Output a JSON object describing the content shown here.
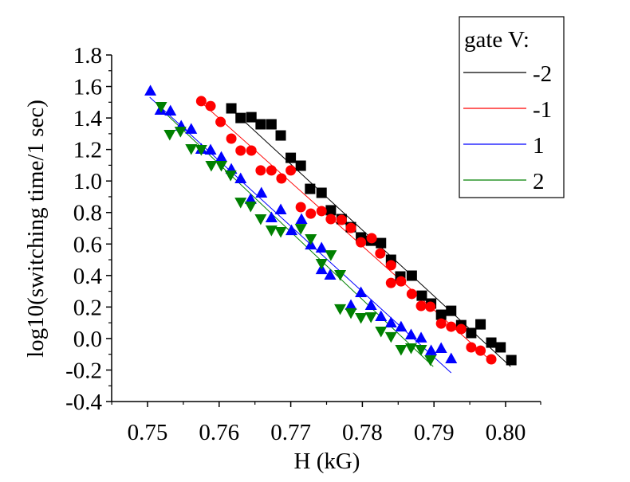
{
  "chart_data": {
    "type": "scatter",
    "title": "",
    "xlabel": "H (kG)",
    "ylabel": "log10(switching time/1 sec)",
    "xlim": [
      0.745,
      0.805
    ],
    "ylim": [
      -0.4,
      1.8
    ],
    "xticks": [
      0.75,
      0.76,
      0.77,
      0.78,
      0.79,
      0.8
    ],
    "xtick_labels": [
      "0.75",
      "0.76",
      "0.77",
      "0.78",
      "0.79",
      "0.80"
    ],
    "yticks": [
      -0.4,
      -0.2,
      0.0,
      0.2,
      0.4,
      0.6,
      0.8,
      1.0,
      1.2,
      1.4,
      1.6,
      1.8
    ],
    "ytick_labels": [
      "-0.4",
      "-0.2",
      "0.0",
      "0.2",
      "0.4",
      "0.6",
      "0.8",
      "1.0",
      "1.2",
      "1.4",
      "1.6",
      "1.8"
    ],
    "grid": false,
    "legend": {
      "title": "gate V:",
      "position": "top-right",
      "entries": [
        "-2",
        "-1",
        "1",
        "2"
      ]
    },
    "series": [
      {
        "name": "-2",
        "color": "#000000",
        "marker": "square",
        "x": [
          0.7617,
          0.763,
          0.7645,
          0.7658,
          0.7673,
          0.7686,
          0.77,
          0.7714,
          0.7727,
          0.7743,
          0.7756,
          0.7771,
          0.7784,
          0.7798,
          0.7812,
          0.7826,
          0.784,
          0.7853,
          0.7869,
          0.7883,
          0.7896,
          0.791,
          0.7924,
          0.7938,
          0.7952,
          0.7965,
          0.798,
          0.7993,
          0.8008
        ],
        "y": [
          1.461,
          1.4,
          1.405,
          1.36,
          1.36,
          1.289,
          1.147,
          1.097,
          0.95,
          0.925,
          0.814,
          0.758,
          0.707,
          0.642,
          0.621,
          0.606,
          0.5,
          0.394,
          0.399,
          0.272,
          0.222,
          0.151,
          0.176,
          0.085,
          0.035,
          0.09,
          -0.026,
          -0.056,
          -0.137
        ],
        "fit": {
          "x": [
            0.7619,
            0.8007
          ],
          "y": [
            1.446,
            -0.178
          ]
        }
      },
      {
        "name": "-1",
        "color": "#ff0000",
        "marker": "circle",
        "x": [
          0.7575,
          0.7588,
          0.7602,
          0.7617,
          0.763,
          0.7645,
          0.7658,
          0.7673,
          0.7687,
          0.77,
          0.7714,
          0.7728,
          0.7743,
          0.7756,
          0.7771,
          0.7784,
          0.7798,
          0.7813,
          0.7825,
          0.784,
          0.784,
          0.7854,
          0.7869,
          0.7882,
          0.7895,
          0.791,
          0.7924,
          0.7938,
          0.7952,
          0.7965,
          0.798
        ],
        "y": [
          1.507,
          1.476,
          1.375,
          1.269,
          1.193,
          1.193,
          1.067,
          1.067,
          1.016,
          1.067,
          0.834,
          0.793,
          0.809,
          0.758,
          0.753,
          0.702,
          0.611,
          0.637,
          0.54,
          0.465,
          0.353,
          0.363,
          0.283,
          0.207,
          0.202,
          0.095,
          0.075,
          0.06,
          -0.056,
          -0.077,
          -0.132
        ],
        "fit": {
          "x": [
            0.7577,
            0.7981
          ],
          "y": [
            1.491,
            -0.147
          ]
        }
      },
      {
        "name": "1",
        "color": "#0000ff",
        "marker": "triangle-up",
        "x": [
          0.7504,
          0.7518,
          0.7532,
          0.7547,
          0.7561,
          0.7575,
          0.7588,
          0.7603,
          0.7617,
          0.763,
          0.7644,
          0.7659,
          0.7673,
          0.7686,
          0.7701,
          0.7715,
          0.7728,
          0.7743,
          0.7743,
          0.7755,
          0.7784,
          0.7798,
          0.7812,
          0.7826,
          0.784,
          0.7854,
          0.7868,
          0.7882,
          0.7896,
          0.791,
          0.7924
        ],
        "y": [
          1.573,
          1.451,
          1.446,
          1.35,
          1.33,
          1.203,
          1.198,
          1.152,
          1.076,
          1.016,
          0.885,
          0.925,
          0.768,
          0.819,
          0.687,
          0.758,
          0.596,
          0.576,
          0.439,
          0.404,
          0.212,
          0.293,
          0.212,
          0.141,
          0.101,
          0.075,
          0.025,
          0.005,
          -0.076,
          -0.061,
          -0.127
        ],
        "fit": {
          "x": [
            0.7503,
            0.7924
          ],
          "y": [
            1.532,
            -0.218
          ]
        }
      },
      {
        "name": "2",
        "color": "#008000",
        "marker": "triangle-down",
        "x": [
          0.7519,
          0.7531,
          0.7546,
          0.7561,
          0.7575,
          0.7589,
          0.7603,
          0.7616,
          0.763,
          0.7644,
          0.7658,
          0.7673,
          0.7686,
          0.7714,
          0.7728,
          0.7743,
          0.7756,
          0.7769,
          0.7769,
          0.7784,
          0.7798,
          0.7812,
          0.7826,
          0.784,
          0.7854,
          0.7868,
          0.7882,
          0.7895
        ],
        "y": [
          1.471,
          1.294,
          1.314,
          1.203,
          1.198,
          1.097,
          1.097,
          1.036,
          0.864,
          0.839,
          0.758,
          0.687,
          0.677,
          0.697,
          0.632,
          0.475,
          0.53,
          0.404,
          0.187,
          0.162,
          0.131,
          0.136,
          0.045,
          0.01,
          -0.071,
          -0.061,
          -0.071,
          -0.137
        ],
        "fit": {
          "x": [
            0.752,
            0.7899
          ],
          "y": [
            1.451,
            -0.178
          ]
        }
      }
    ]
  }
}
